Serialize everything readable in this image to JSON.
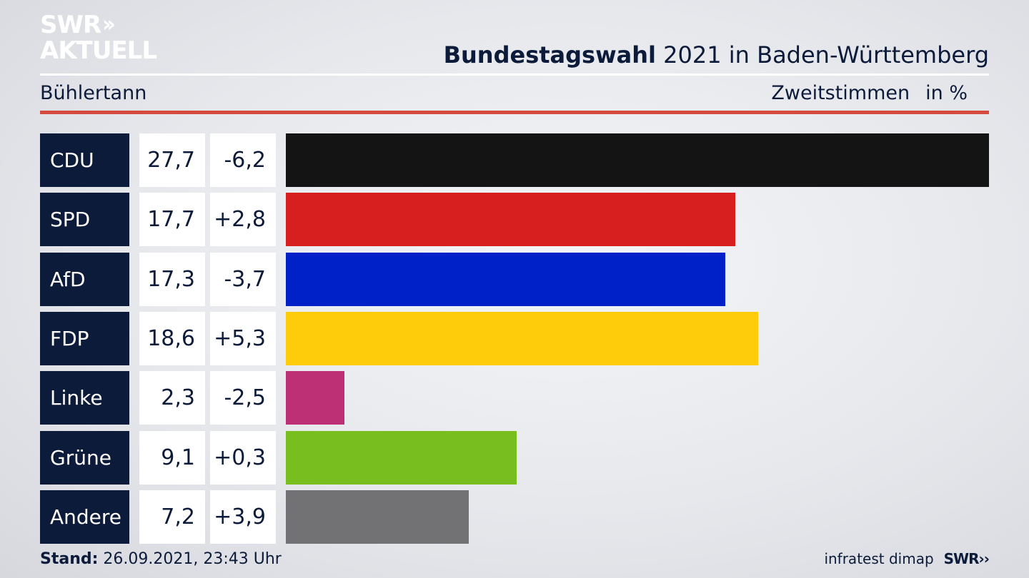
{
  "header": {
    "logo_line1": "SWR",
    "logo_line2": "AKTUELL",
    "title_bold": "Bundestagswahl",
    "title_rest": " 2021 in Baden-Württemberg",
    "place": "Bühlertann",
    "measure": "Zweitstimmen",
    "unit": "in %"
  },
  "footer": {
    "stand_label": "Stand:",
    "stand_value": " 26.09.2021, 23:43 Uhr",
    "source": "infratest dimap",
    "brand": "SWR"
  },
  "chart_data": {
    "type": "bar",
    "orientation": "horizontal",
    "categories": [
      "CDU",
      "SPD",
      "AfD",
      "FDP",
      "Linke",
      "Grüne",
      "Andere"
    ],
    "values": [
      27.7,
      17.7,
      17.3,
      18.6,
      2.3,
      9.1,
      7.2
    ],
    "value_labels": [
      "27,7",
      "17,7",
      "17,3",
      "18,6",
      "2,3",
      "9,1",
      "7,2"
    ],
    "diff_labels": [
      "-6,2",
      "+2,8",
      "-3,7",
      "+5,3",
      "-2,5",
      "+0,3",
      "+3,9"
    ],
    "diffs": [
      -6.2,
      2.8,
      -3.7,
      5.3,
      -2.5,
      0.3,
      3.9
    ],
    "colors": [
      "#141414",
      "#d71f1f",
      "#0020c8",
      "#ffcc0c",
      "#be3075",
      "#78be1e",
      "#727275"
    ],
    "xlim": [
      0,
      27.7
    ],
    "title": "Bundestagswahl 2021 in Baden-Württemberg",
    "grid": false
  }
}
